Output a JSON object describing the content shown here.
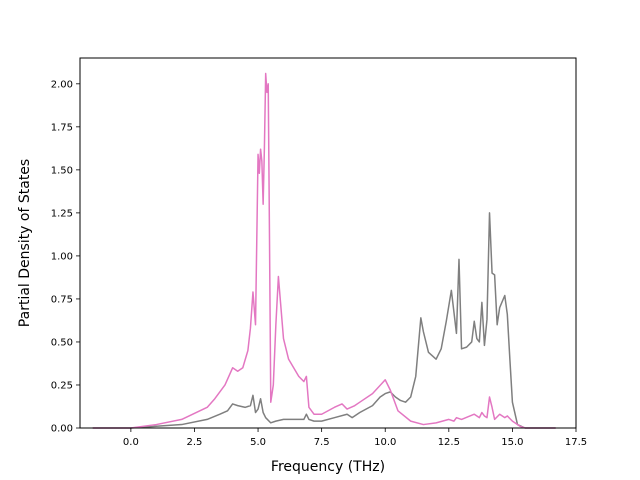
{
  "chart_data": {
    "type": "line",
    "xlabel": "Frequency (THz)",
    "ylabel": "Partial Density of States",
    "xlim": [
      -2.0,
      17.5
    ],
    "ylim": [
      0.0,
      2.15
    ],
    "xticks": [
      "0.0",
      "2.5",
      "5.0",
      "7.5",
      "10.0",
      "12.5",
      "15.0",
      "17.5"
    ],
    "xtick_values": [
      0.0,
      2.5,
      5.0,
      7.5,
      10.0,
      12.5,
      15.0,
      17.5
    ],
    "yticks": [
      "0.00",
      "0.25",
      "0.50",
      "0.75",
      "1.00",
      "1.25",
      "1.50",
      "1.75",
      "2.00"
    ],
    "ytick_values": [
      0.0,
      0.25,
      0.5,
      0.75,
      1.0,
      1.25,
      1.5,
      1.75,
      2.0
    ],
    "grid": false,
    "series": [
      {
        "color": "#7f7f7f",
        "points": [
          [
            -1.5,
            0.0
          ],
          [
            0.0,
            0.0
          ],
          [
            1.0,
            0.01
          ],
          [
            2.0,
            0.02
          ],
          [
            3.0,
            0.05
          ],
          [
            3.5,
            0.08
          ],
          [
            3.8,
            0.1
          ],
          [
            4.0,
            0.14
          ],
          [
            4.2,
            0.13
          ],
          [
            4.5,
            0.12
          ],
          [
            4.7,
            0.13
          ],
          [
            4.8,
            0.19
          ],
          [
            4.9,
            0.09
          ],
          [
            5.0,
            0.11
          ],
          [
            5.1,
            0.17
          ],
          [
            5.2,
            0.09
          ],
          [
            5.3,
            0.06
          ],
          [
            5.5,
            0.03
          ],
          [
            5.7,
            0.04
          ],
          [
            6.0,
            0.05
          ],
          [
            6.5,
            0.05
          ],
          [
            6.8,
            0.05
          ],
          [
            6.9,
            0.08
          ],
          [
            7.0,
            0.05
          ],
          [
            7.2,
            0.04
          ],
          [
            7.5,
            0.04
          ],
          [
            8.0,
            0.06
          ],
          [
            8.5,
            0.08
          ],
          [
            8.7,
            0.06
          ],
          [
            9.0,
            0.09
          ],
          [
            9.5,
            0.13
          ],
          [
            9.8,
            0.18
          ],
          [
            10.0,
            0.2
          ],
          [
            10.2,
            0.21
          ],
          [
            10.4,
            0.18
          ],
          [
            10.6,
            0.16
          ],
          [
            10.8,
            0.15
          ],
          [
            11.0,
            0.18
          ],
          [
            11.2,
            0.3
          ],
          [
            11.4,
            0.64
          ],
          [
            11.5,
            0.56
          ],
          [
            11.7,
            0.44
          ],
          [
            12.0,
            0.4
          ],
          [
            12.2,
            0.46
          ],
          [
            12.4,
            0.62
          ],
          [
            12.6,
            0.8
          ],
          [
            12.8,
            0.55
          ],
          [
            12.9,
            0.98
          ],
          [
            13.0,
            0.46
          ],
          [
            13.2,
            0.47
          ],
          [
            13.4,
            0.5
          ],
          [
            13.5,
            0.62
          ],
          [
            13.6,
            0.52
          ],
          [
            13.7,
            0.5
          ],
          [
            13.8,
            0.73
          ],
          [
            13.9,
            0.48
          ],
          [
            14.0,
            0.63
          ],
          [
            14.1,
            1.25
          ],
          [
            14.2,
            0.9
          ],
          [
            14.3,
            0.89
          ],
          [
            14.4,
            0.6
          ],
          [
            14.5,
            0.7
          ],
          [
            14.7,
            0.77
          ],
          [
            14.8,
            0.66
          ],
          [
            14.9,
            0.4
          ],
          [
            15.0,
            0.15
          ],
          [
            15.2,
            0.02
          ],
          [
            15.5,
            0.0
          ],
          [
            16.7,
            0.0
          ]
        ]
      },
      {
        "color": "#e377c2",
        "points": [
          [
            -1.5,
            0.0
          ],
          [
            0.0,
            0.0
          ],
          [
            1.0,
            0.02
          ],
          [
            2.0,
            0.05
          ],
          [
            3.0,
            0.12
          ],
          [
            3.3,
            0.17
          ],
          [
            3.7,
            0.25
          ],
          [
            4.0,
            0.35
          ],
          [
            4.2,
            0.33
          ],
          [
            4.4,
            0.35
          ],
          [
            4.6,
            0.45
          ],
          [
            4.7,
            0.58
          ],
          [
            4.8,
            0.79
          ],
          [
            4.9,
            0.6
          ],
          [
            5.0,
            1.59
          ],
          [
            5.05,
            1.48
          ],
          [
            5.1,
            1.62
          ],
          [
            5.15,
            1.55
          ],
          [
            5.2,
            1.3
          ],
          [
            5.25,
            1.63
          ],
          [
            5.3,
            2.06
          ],
          [
            5.35,
            1.95
          ],
          [
            5.4,
            2.0
          ],
          [
            5.45,
            1.1
          ],
          [
            5.5,
            0.15
          ],
          [
            5.6,
            0.25
          ],
          [
            5.7,
            0.6
          ],
          [
            5.8,
            0.88
          ],
          [
            5.9,
            0.7
          ],
          [
            6.0,
            0.52
          ],
          [
            6.2,
            0.4
          ],
          [
            6.4,
            0.35
          ],
          [
            6.6,
            0.3
          ],
          [
            6.8,
            0.27
          ],
          [
            6.9,
            0.3
          ],
          [
            7.0,
            0.12
          ],
          [
            7.2,
            0.08
          ],
          [
            7.5,
            0.08
          ],
          [
            8.0,
            0.12
          ],
          [
            8.3,
            0.14
          ],
          [
            8.5,
            0.11
          ],
          [
            8.8,
            0.13
          ],
          [
            9.0,
            0.15
          ],
          [
            9.5,
            0.2
          ],
          [
            10.0,
            0.28
          ],
          [
            10.2,
            0.22
          ],
          [
            10.5,
            0.1
          ],
          [
            11.0,
            0.04
          ],
          [
            11.5,
            0.02
          ],
          [
            12.0,
            0.03
          ],
          [
            12.5,
            0.05
          ],
          [
            12.7,
            0.04
          ],
          [
            12.8,
            0.06
          ],
          [
            13.0,
            0.05
          ],
          [
            13.5,
            0.08
          ],
          [
            13.7,
            0.06
          ],
          [
            13.8,
            0.09
          ],
          [
            13.9,
            0.07
          ],
          [
            14.0,
            0.06
          ],
          [
            14.1,
            0.18
          ],
          [
            14.2,
            0.12
          ],
          [
            14.3,
            0.05
          ],
          [
            14.5,
            0.08
          ],
          [
            14.7,
            0.06
          ],
          [
            14.8,
            0.07
          ],
          [
            15.0,
            0.04
          ],
          [
            15.3,
            0.01
          ],
          [
            15.5,
            0.0
          ],
          [
            16.7,
            0.0
          ]
        ]
      }
    ]
  }
}
